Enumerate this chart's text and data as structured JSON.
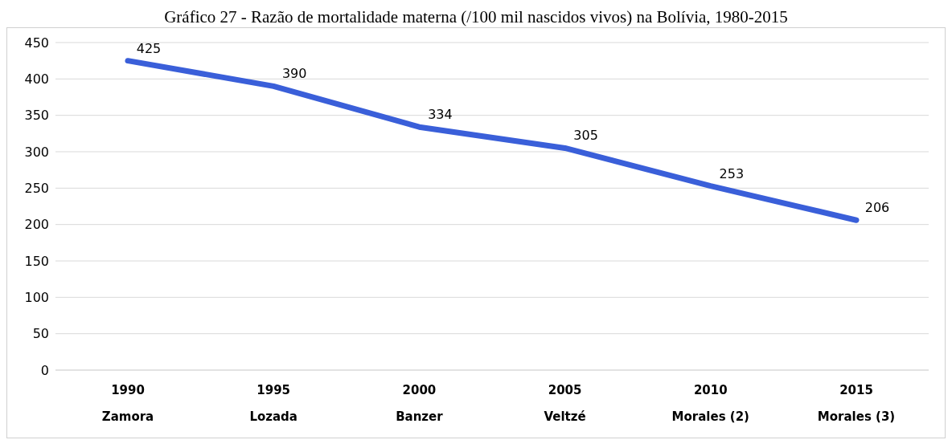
{
  "chart_data": {
    "type": "line",
    "title": "Gráfico 27 - Razão de mortalidade materna (/100 mil nascidos vivos) na Bolívia, 1980-2015",
    "categories": [
      "1990\nZamora",
      "1995\nLozada",
      "2000\nBanzer",
      "2005\nVeltzé",
      "2010\nMorales (2)",
      "2015\nMorales (3)"
    ],
    "series": [
      {
        "color": "#3a5fd9",
        "values": [
          425,
          390,
          334,
          305,
          253,
          206
        ]
      }
    ],
    "ylim": [
      0,
      450
    ],
    "yticks": [
      0,
      50,
      100,
      150,
      200,
      250,
      300,
      350,
      400,
      450
    ],
    "grid": "y",
    "data_labels": true,
    "marker": "none",
    "line_style": "solid",
    "legend": false
  }
}
